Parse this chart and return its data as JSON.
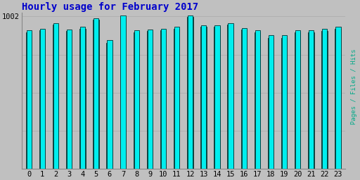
{
  "title": "Hourly usage for February 2017",
  "title_color": "#0000cc",
  "ylabel": "Pages / Files / Hits",
  "ylabel_color": "#00aa88",
  "background_color": "#c0c0c0",
  "plot_bg_color": "#c0c0c0",
  "hours": [
    0,
    1,
    2,
    3,
    4,
    5,
    6,
    7,
    8,
    9,
    10,
    11,
    12,
    13,
    14,
    15,
    16,
    17,
    18,
    19,
    20,
    21,
    22,
    23
  ],
  "pages": [
    965,
    970,
    985,
    968,
    975,
    998,
    940,
    1004,
    965,
    968,
    970,
    975,
    1004,
    978,
    978,
    985,
    972,
    965,
    952,
    952,
    965,
    965,
    970,
    975
  ],
  "files": [
    960,
    966,
    980,
    963,
    970,
    994,
    933,
    1000,
    960,
    963,
    966,
    970,
    1000,
    974,
    974,
    980,
    967,
    960,
    946,
    946,
    960,
    960,
    964,
    970
  ],
  "bar_color_pages": "#00eeee",
  "bar_color_files": "#008866",
  "bar_color_hits": "#0055bb",
  "bar_edge_color": "#003333",
  "ylim_min": 600,
  "ylim_max": 1012,
  "ytick_val": 1002,
  "ytick_label": "1002",
  "font_family": "monospace",
  "title_fontsize": 10,
  "tick_fontsize": 7.5
}
